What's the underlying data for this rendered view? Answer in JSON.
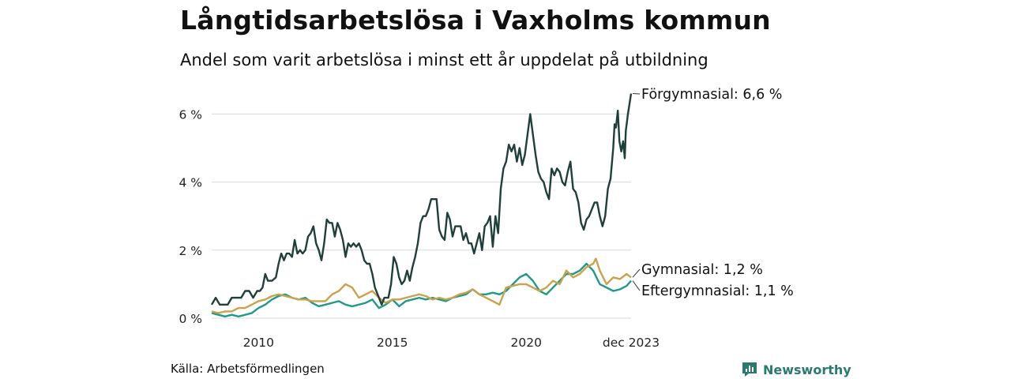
{
  "title": "Långtidsarbetslösa i Vaxholms kommun",
  "subtitle": "Andel som varit arbetslösa i minst ett år uppdelat på utbildning",
  "source": "Källa: Arbetsförmedlingen",
  "brand": {
    "name": "Newsworthy",
    "icon": "newsworthy-logo-icon",
    "color": "#2b7a6f"
  },
  "chart_data": {
    "type": "line",
    "title": "Långtidsarbetslösa i Vaxholms kommun",
    "xlabel": "",
    "ylabel": "",
    "x_range": [
      2008.25,
      2023.917
    ],
    "ylim": [
      0,
      6.6
    ],
    "yticks": [
      0,
      2,
      4,
      6
    ],
    "ytick_labels": [
      "0 %",
      "2 %",
      "4 %",
      "6 %"
    ],
    "xticks": [
      2010,
      2015,
      2020,
      2023.917
    ],
    "xtick_labels": [
      "2010",
      "2015",
      "2020",
      "dec 2023"
    ],
    "grid": true,
    "series": [
      {
        "name": "Förgymnasial",
        "end_label": "Förgymnasial: 6,6 %",
        "color": "#1f3f3a",
        "points": [
          [
            2008.25,
            0.4
          ],
          [
            2008.4,
            0.6
          ],
          [
            2008.55,
            0.4
          ],
          [
            2008.7,
            0.4
          ],
          [
            2008.85,
            0.4
          ],
          [
            2009.0,
            0.6
          ],
          [
            2009.2,
            0.6
          ],
          [
            2009.35,
            0.6
          ],
          [
            2009.5,
            0.8
          ],
          [
            2009.65,
            0.8
          ],
          [
            2009.8,
            0.6
          ],
          [
            2009.95,
            0.8
          ],
          [
            2010.05,
            0.8
          ],
          [
            2010.15,
            0.9
          ],
          [
            2010.25,
            1.3
          ],
          [
            2010.35,
            1.1
          ],
          [
            2010.5,
            1.1
          ],
          [
            2010.65,
            1.2
          ],
          [
            2010.75,
            1.6
          ],
          [
            2010.85,
            1.9
          ],
          [
            2010.95,
            1.7
          ],
          [
            2011.05,
            1.9
          ],
          [
            2011.15,
            1.9
          ],
          [
            2011.25,
            1.8
          ],
          [
            2011.35,
            2.3
          ],
          [
            2011.45,
            1.9
          ],
          [
            2011.55,
            2.0
          ],
          [
            2011.65,
            1.9
          ],
          [
            2011.75,
            2.0
          ],
          [
            2011.85,
            2.4
          ],
          [
            2011.95,
            2.5
          ],
          [
            2012.05,
            2.7
          ],
          [
            2012.15,
            2.2
          ],
          [
            2012.25,
            2.0
          ],
          [
            2012.35,
            1.7
          ],
          [
            2012.45,
            2.2
          ],
          [
            2012.55,
            2.9
          ],
          [
            2012.65,
            2.8
          ],
          [
            2012.75,
            2.8
          ],
          [
            2012.85,
            2.4
          ],
          [
            2012.95,
            2.8
          ],
          [
            2013.05,
            2.6
          ],
          [
            2013.15,
            2.3
          ],
          [
            2013.25,
            1.8
          ],
          [
            2013.35,
            2.2
          ],
          [
            2013.45,
            2.1
          ],
          [
            2013.55,
            2.2
          ],
          [
            2013.65,
            2.1
          ],
          [
            2013.75,
            2.2
          ],
          [
            2013.85,
            2.0
          ],
          [
            2013.95,
            1.7
          ],
          [
            2014.05,
            1.6
          ],
          [
            2014.15,
            1.6
          ],
          [
            2014.25,
            1.3
          ],
          [
            2014.35,
            0.9
          ],
          [
            2014.5,
            0.6
          ],
          [
            2014.6,
            0.4
          ],
          [
            2014.7,
            0.6
          ],
          [
            2014.85,
            0.6
          ],
          [
            2014.95,
            1.0
          ],
          [
            2015.05,
            1.8
          ],
          [
            2015.15,
            1.6
          ],
          [
            2015.25,
            1.2
          ],
          [
            2015.35,
            1.0
          ],
          [
            2015.45,
            1.1
          ],
          [
            2015.55,
            1.4
          ],
          [
            2015.65,
            1.1
          ],
          [
            2015.75,
            1.5
          ],
          [
            2015.85,
            1.8
          ],
          [
            2015.95,
            2.2
          ],
          [
            2016.05,
            2.8
          ],
          [
            2016.15,
            3.0
          ],
          [
            2016.25,
            3.0
          ],
          [
            2016.35,
            3.2
          ],
          [
            2016.45,
            3.5
          ],
          [
            2016.55,
            3.5
          ],
          [
            2016.65,
            3.5
          ],
          [
            2016.75,
            2.6
          ],
          [
            2016.85,
            2.4
          ],
          [
            2016.95,
            2.3
          ],
          [
            2017.05,
            3.1
          ],
          [
            2017.15,
            2.9
          ],
          [
            2017.25,
            2.4
          ],
          [
            2017.35,
            2.7
          ],
          [
            2017.45,
            2.7
          ],
          [
            2017.55,
            2.7
          ],
          [
            2017.65,
            2.3
          ],
          [
            2017.75,
            2.5
          ],
          [
            2017.85,
            2.2
          ],
          [
            2017.95,
            2.2
          ],
          [
            2018.05,
            1.9
          ],
          [
            2018.15,
            2.2
          ],
          [
            2018.25,
            2.5
          ],
          [
            2018.35,
            2.0
          ],
          [
            2018.45,
            2.7
          ],
          [
            2018.55,
            2.8
          ],
          [
            2018.65,
            3.0
          ],
          [
            2018.75,
            2.1
          ],
          [
            2018.85,
            3.0
          ],
          [
            2018.95,
            2.5
          ],
          [
            2019.05,
            3.8
          ],
          [
            2019.15,
            4.4
          ],
          [
            2019.25,
            4.6
          ],
          [
            2019.35,
            5.1
          ],
          [
            2019.45,
            4.9
          ],
          [
            2019.55,
            5.1
          ],
          [
            2019.65,
            4.6
          ],
          [
            2019.75,
            5.0
          ],
          [
            2019.85,
            4.5
          ],
          [
            2019.95,
            4.8
          ],
          [
            2020.05,
            5.4
          ],
          [
            2020.15,
            6.0
          ],
          [
            2020.25,
            5.4
          ],
          [
            2020.35,
            4.8
          ],
          [
            2020.45,
            4.3
          ],
          [
            2020.55,
            4.1
          ],
          [
            2020.65,
            4.0
          ],
          [
            2020.75,
            3.7
          ],
          [
            2020.85,
            3.5
          ],
          [
            2020.95,
            4.4
          ],
          [
            2021.05,
            4.2
          ],
          [
            2021.15,
            4.4
          ],
          [
            2021.25,
            4.3
          ],
          [
            2021.35,
            4.0
          ],
          [
            2021.45,
            3.9
          ],
          [
            2021.55,
            4.3
          ],
          [
            2021.65,
            4.6
          ],
          [
            2021.75,
            3.8
          ],
          [
            2021.85,
            3.7
          ],
          [
            2021.95,
            3.4
          ],
          [
            2022.05,
            2.8
          ],
          [
            2022.15,
            2.6
          ],
          [
            2022.25,
            2.9
          ],
          [
            2022.35,
            3.0
          ],
          [
            2022.45,
            3.2
          ],
          [
            2022.55,
            3.4
          ],
          [
            2022.65,
            3.4
          ],
          [
            2022.75,
            3.0
          ],
          [
            2022.85,
            2.7
          ],
          [
            2022.95,
            3.0
          ],
          [
            2023.05,
            3.8
          ],
          [
            2023.15,
            4.1
          ],
          [
            2023.25,
            5.0
          ],
          [
            2023.3,
            5.7
          ],
          [
            2023.35,
            5.6
          ],
          [
            2023.42,
            6.1
          ],
          [
            2023.48,
            5.2
          ],
          [
            2023.55,
            4.9
          ],
          [
            2023.62,
            5.2
          ],
          [
            2023.68,
            4.7
          ],
          [
            2023.72,
            5.5
          ],
          [
            2023.8,
            6.0
          ],
          [
            2023.917,
            6.6
          ]
        ]
      },
      {
        "name": "Gymnasial",
        "end_label": "Gymnasial: 1,2 %",
        "color": "#c9a24a",
        "points": [
          [
            2008.25,
            0.2
          ],
          [
            2008.5,
            0.15
          ],
          [
            2008.75,
            0.2
          ],
          [
            2009.0,
            0.2
          ],
          [
            2009.25,
            0.3
          ],
          [
            2009.5,
            0.3
          ],
          [
            2009.75,
            0.4
          ],
          [
            2010.0,
            0.5
          ],
          [
            2010.25,
            0.55
          ],
          [
            2010.5,
            0.65
          ],
          [
            2010.75,
            0.7
          ],
          [
            2011.0,
            0.65
          ],
          [
            2011.25,
            0.6
          ],
          [
            2011.5,
            0.55
          ],
          [
            2011.75,
            0.55
          ],
          [
            2012.0,
            0.5
          ],
          [
            2012.25,
            0.5
          ],
          [
            2012.5,
            0.5
          ],
          [
            2012.75,
            0.7
          ],
          [
            2013.0,
            0.8
          ],
          [
            2013.25,
            1.0
          ],
          [
            2013.5,
            0.9
          ],
          [
            2013.75,
            0.6
          ],
          [
            2014.0,
            0.7
          ],
          [
            2014.25,
            0.8
          ],
          [
            2014.5,
            0.6
          ],
          [
            2014.75,
            0.45
          ],
          [
            2015.0,
            0.55
          ],
          [
            2015.25,
            0.55
          ],
          [
            2015.5,
            0.6
          ],
          [
            2015.75,
            0.65
          ],
          [
            2016.0,
            0.7
          ],
          [
            2016.25,
            0.65
          ],
          [
            2016.5,
            0.55
          ],
          [
            2016.75,
            0.6
          ],
          [
            2017.0,
            0.55
          ],
          [
            2017.25,
            0.6
          ],
          [
            2017.5,
            0.7
          ],
          [
            2017.75,
            0.75
          ],
          [
            2018.0,
            0.85
          ],
          [
            2018.25,
            0.7
          ],
          [
            2018.5,
            0.6
          ],
          [
            2018.75,
            0.5
          ],
          [
            2019.0,
            0.4
          ],
          [
            2019.25,
            0.9
          ],
          [
            2019.5,
            0.95
          ],
          [
            2019.75,
            1.0
          ],
          [
            2020.0,
            1.0
          ],
          [
            2020.25,
            0.9
          ],
          [
            2020.5,
            0.8
          ],
          [
            2020.75,
            0.9
          ],
          [
            2021.0,
            1.1
          ],
          [
            2021.25,
            1.0
          ],
          [
            2021.5,
            1.4
          ],
          [
            2021.75,
            1.2
          ],
          [
            2022.0,
            1.3
          ],
          [
            2022.25,
            1.5
          ],
          [
            2022.5,
            1.6
          ],
          [
            2022.6,
            1.75
          ],
          [
            2022.75,
            1.4
          ],
          [
            2023.0,
            1.0
          ],
          [
            2023.25,
            1.2
          ],
          [
            2023.5,
            1.15
          ],
          [
            2023.75,
            1.3
          ],
          [
            2023.917,
            1.2
          ]
        ]
      },
      {
        "name": "Eftergymnasial",
        "end_label": "Eftergymnasial: 1,1 %",
        "color": "#1f9a8a",
        "points": [
          [
            2008.25,
            0.15
          ],
          [
            2008.5,
            0.1
          ],
          [
            2008.75,
            0.05
          ],
          [
            2009.0,
            0.1
          ],
          [
            2009.25,
            0.05
          ],
          [
            2009.5,
            0.1
          ],
          [
            2009.75,
            0.15
          ],
          [
            2010.0,
            0.3
          ],
          [
            2010.25,
            0.4
          ],
          [
            2010.5,
            0.55
          ],
          [
            2010.75,
            0.65
          ],
          [
            2011.0,
            0.7
          ],
          [
            2011.25,
            0.6
          ],
          [
            2011.5,
            0.55
          ],
          [
            2011.75,
            0.6
          ],
          [
            2012.0,
            0.45
          ],
          [
            2012.25,
            0.35
          ],
          [
            2012.5,
            0.4
          ],
          [
            2012.75,
            0.45
          ],
          [
            2013.0,
            0.5
          ],
          [
            2013.25,
            0.4
          ],
          [
            2013.5,
            0.35
          ],
          [
            2013.75,
            0.4
          ],
          [
            2014.0,
            0.45
          ],
          [
            2014.25,
            0.55
          ],
          [
            2014.5,
            0.3
          ],
          [
            2014.75,
            0.4
          ],
          [
            2015.0,
            0.55
          ],
          [
            2015.25,
            0.35
          ],
          [
            2015.5,
            0.5
          ],
          [
            2015.75,
            0.55
          ],
          [
            2016.0,
            0.6
          ],
          [
            2016.25,
            0.55
          ],
          [
            2016.5,
            0.6
          ],
          [
            2016.75,
            0.55
          ],
          [
            2017.0,
            0.5
          ],
          [
            2017.25,
            0.6
          ],
          [
            2017.5,
            0.65
          ],
          [
            2017.75,
            0.7
          ],
          [
            2018.0,
            0.85
          ],
          [
            2018.25,
            0.7
          ],
          [
            2018.5,
            0.7
          ],
          [
            2018.75,
            0.75
          ],
          [
            2019.0,
            0.7
          ],
          [
            2019.25,
            0.8
          ],
          [
            2019.5,
            1.0
          ],
          [
            2019.75,
            1.2
          ],
          [
            2020.0,
            1.3
          ],
          [
            2020.25,
            1.1
          ],
          [
            2020.5,
            0.8
          ],
          [
            2020.75,
            0.7
          ],
          [
            2021.0,
            0.9
          ],
          [
            2021.25,
            1.1
          ],
          [
            2021.5,
            1.3
          ],
          [
            2021.75,
            1.3
          ],
          [
            2022.0,
            1.4
          ],
          [
            2022.25,
            1.6
          ],
          [
            2022.5,
            1.4
          ],
          [
            2022.75,
            1.0
          ],
          [
            2023.0,
            0.9
          ],
          [
            2023.25,
            0.8
          ],
          [
            2023.5,
            0.85
          ],
          [
            2023.75,
            0.95
          ],
          [
            2023.917,
            1.1
          ]
        ]
      }
    ]
  }
}
